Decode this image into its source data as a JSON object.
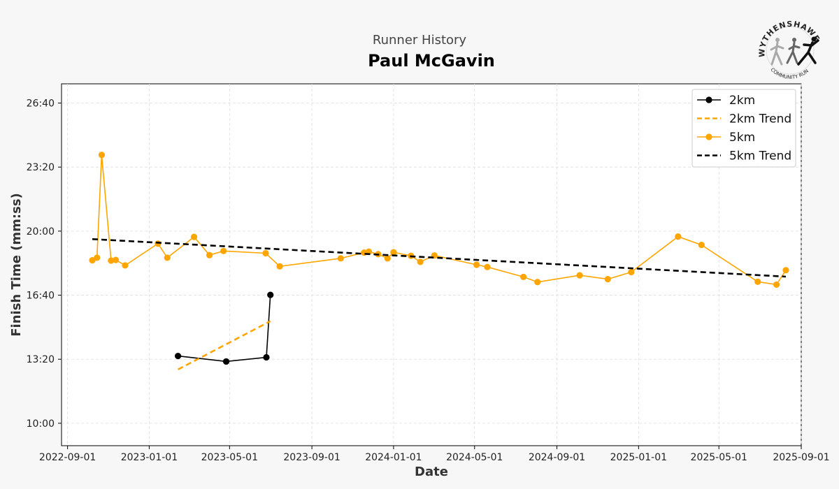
{
  "header": {
    "subtitle": "Runner History",
    "title": "Paul McGavin"
  },
  "logo": {
    "top_text": "WYTHENSHAWE",
    "bottom_text": "COMMUNITY RUN"
  },
  "colors": {
    "two_km": "#000000",
    "two_km_trend": "#ffa500",
    "five_km": "#ffa500",
    "five_km_trend": "#000000",
    "plot_background": "#ffffff",
    "page_background": "#f7f7f7"
  },
  "chart_data": {
    "type": "line",
    "xlabel": "Date",
    "ylabel": "Finish Time (mm:ss)",
    "x_ticks": [
      "2022-09-01",
      "2023-01-01",
      "2023-05-01",
      "2023-09-01",
      "2024-01-01",
      "2024-05-01",
      "2024-09-01",
      "2025-01-01",
      "2025-05-01",
      "2025-09-01"
    ],
    "xlim": [
      "2022-08-23",
      "2025-09-01"
    ],
    "y_ticks": [
      "10:00",
      "13:20",
      "16:40",
      "20:00",
      "23:20",
      "26:40"
    ],
    "y_tick_seconds": [
      600,
      800,
      1000,
      1200,
      1400,
      1600
    ],
    "ylim_seconds": [
      530,
      1660
    ],
    "grid": true,
    "legend_position": "top-right",
    "series": [
      {
        "name": "2km",
        "style": "solid-markers",
        "points": [
          {
            "x": "2023-02-13",
            "y": 810
          },
          {
            "x": "2023-04-26",
            "y": 793
          },
          {
            "x": "2023-06-25",
            "y": 806
          },
          {
            "x": "2023-07-01",
            "y": 1001
          }
        ]
      },
      {
        "name": "2km Trend",
        "style": "dashed",
        "points": [
          {
            "x": "2023-02-13",
            "y": 768
          },
          {
            "x": "2023-07-01",
            "y": 919
          }
        ]
      },
      {
        "name": "5km",
        "style": "solid-markers",
        "points": [
          {
            "x": "2022-10-08",
            "y": 1109
          },
          {
            "x": "2022-10-15",
            "y": 1117
          },
          {
            "x": "2022-10-22",
            "y": 1438
          },
          {
            "x": "2022-11-05",
            "y": 1108
          },
          {
            "x": "2022-11-12",
            "y": 1110
          },
          {
            "x": "2022-11-26",
            "y": 1093
          },
          {
            "x": "2023-01-14",
            "y": 1161
          },
          {
            "x": "2023-01-28",
            "y": 1117
          },
          {
            "x": "2023-03-09",
            "y": 1182
          },
          {
            "x": "2023-04-01",
            "y": 1125
          },
          {
            "x": "2023-04-22",
            "y": 1138
          },
          {
            "x": "2023-06-24",
            "y": 1131
          },
          {
            "x": "2023-07-15",
            "y": 1090
          },
          {
            "x": "2023-10-14",
            "y": 1115
          },
          {
            "x": "2023-11-18",
            "y": 1133
          },
          {
            "x": "2023-11-25",
            "y": 1136
          },
          {
            "x": "2023-12-09",
            "y": 1128
          },
          {
            "x": "2023-12-23",
            "y": 1115
          },
          {
            "x": "2024-01-01",
            "y": 1134
          },
          {
            "x": "2024-01-27",
            "y": 1123
          },
          {
            "x": "2024-02-10",
            "y": 1104
          },
          {
            "x": "2024-03-02",
            "y": 1124
          },
          {
            "x": "2024-05-04",
            "y": 1095
          },
          {
            "x": "2024-05-20",
            "y": 1088
          },
          {
            "x": "2024-07-13",
            "y": 1057
          },
          {
            "x": "2024-08-03",
            "y": 1041
          },
          {
            "x": "2024-10-05",
            "y": 1062
          },
          {
            "x": "2024-11-16",
            "y": 1050
          },
          {
            "x": "2024-12-21",
            "y": 1072
          },
          {
            "x": "2025-03-01",
            "y": 1183
          },
          {
            "x": "2025-04-05",
            "y": 1157
          },
          {
            "x": "2025-06-28",
            "y": 1042
          },
          {
            "x": "2025-07-26",
            "y": 1033
          },
          {
            "x": "2025-08-09",
            "y": 1078
          }
        ]
      },
      {
        "name": "5km Trend",
        "style": "dashed",
        "points": [
          {
            "x": "2022-10-08",
            "y": 1175
          },
          {
            "x": "2025-08-09",
            "y": 1058
          }
        ]
      }
    ]
  }
}
